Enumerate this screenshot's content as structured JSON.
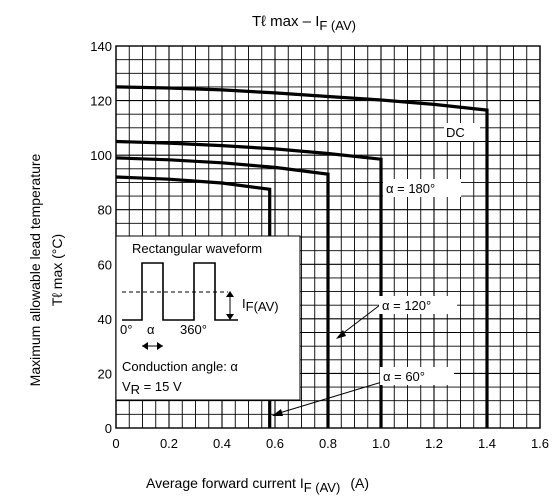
{
  "chart_data": {
    "type": "line",
    "title_main": "Tℓ max – I",
    "title_sub": "F (AV)",
    "xlabel_main": "Average forward current   I",
    "xlabel_sub": "F (AV)",
    "xlabel_unit": "(A)",
    "ylabel_line1": "Maximum allowable lead temperature",
    "ylabel_line2": "Tℓ max    (°C)",
    "xlim": [
      0,
      1.6
    ],
    "ylim": [
      0,
      140
    ],
    "x_ticks": [
      "0",
      "0.2",
      "0.4",
      "0.6",
      "0.8",
      "1.0",
      "1.2",
      "1.4",
      "1.6"
    ],
    "y_ticks": [
      "0",
      "20",
      "40",
      "60",
      "80",
      "100",
      "120",
      "140"
    ],
    "grid": true,
    "series": [
      {
        "name": "DC",
        "x": [
          0,
          0.2,
          0.4,
          0.6,
          0.8,
          1.0,
          1.2,
          1.4,
          1.4
        ],
        "y": [
          125,
          124.6,
          123.9,
          122.8,
          121.5,
          120.2,
          118.6,
          116.5,
          0
        ]
      },
      {
        "name": "α = 180°",
        "x": [
          0,
          0.2,
          0.4,
          0.6,
          0.8,
          1.0,
          1.0
        ],
        "y": [
          105,
          104.4,
          103.5,
          102.3,
          100.6,
          98.5,
          0
        ]
      },
      {
        "name": "α = 120°",
        "x": [
          0,
          0.2,
          0.4,
          0.6,
          0.8,
          0.8
        ],
        "y": [
          99,
          98.3,
          97.2,
          95.5,
          93,
          0
        ]
      },
      {
        "name": "α = 60°",
        "x": [
          0,
          0.2,
          0.4,
          0.58,
          0.58
        ],
        "y": [
          92,
          91.2,
          89.8,
          87.5,
          0
        ]
      }
    ],
    "annotations": {
      "dc": "DC",
      "a180": "α = 180°",
      "a120": "α = 120°",
      "a60": "α = 60°"
    },
    "inset": {
      "title": "Rectangular waveform",
      "label_0": "0°",
      "label_alpha": "α",
      "label_360": "360°",
      "ifav_main": "I",
      "ifav_sub": "F(AV)",
      "conduction": "Conduction angle: α",
      "vr_main": "V",
      "vr_sub": "R",
      "vr_rest": " = 15 V"
    }
  }
}
